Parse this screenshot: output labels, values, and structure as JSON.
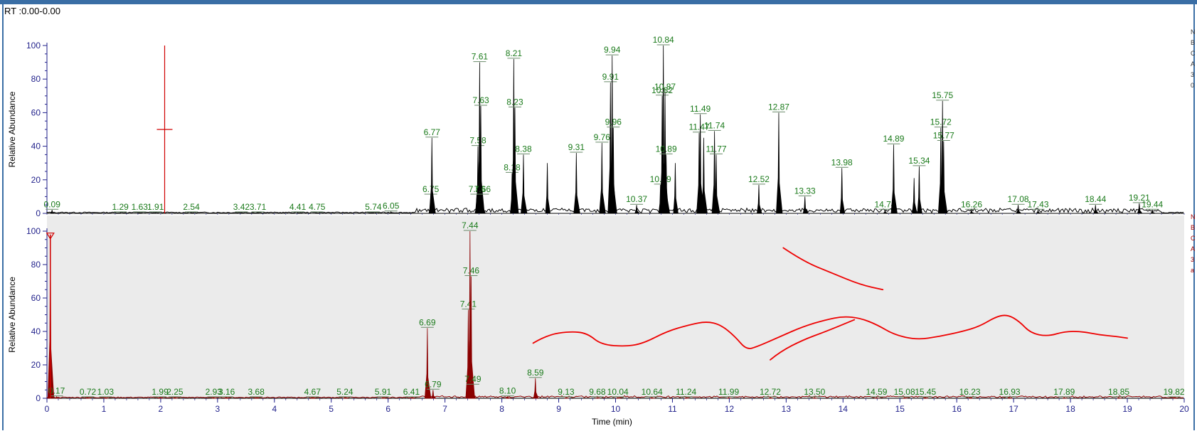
{
  "window": {
    "rt_range": "RT :0.00-0.00",
    "side_text_top": [
      "N",
      "B",
      "C",
      "A",
      "3",
      "0"
    ],
    "side_text_bottom": [
      "N",
      "B",
      "C",
      "A",
      "3",
      "a"
    ]
  },
  "colors": {
    "trace_top": "#000000",
    "trace_bottom": "#8b0000",
    "peak_label": "#1a7a1a",
    "tick_label": "#1f1f8a",
    "annotation": "#ee0000",
    "bottom_panel_bg": "#ebebeb"
  },
  "chart_data": [
    {
      "type": "line",
      "panel": "top",
      "xlabel": "",
      "ylabel": "Relative Abundance",
      "xlim": [
        0,
        20
      ],
      "ylim": [
        0,
        100
      ],
      "yticks": [
        0,
        20,
        40,
        60,
        80,
        100
      ],
      "grid": false,
      "marker": {
        "x": 2.07,
        "y_center": 50,
        "y_top": 100
      },
      "peaks": [
        {
          "rt": 0.09,
          "label": "0.09",
          "height": 2
        },
        {
          "rt": 1.29,
          "label": "1.29",
          "height": 0.5
        },
        {
          "rt": 1.63,
          "label": "1.63",
          "height": 0.5
        },
        {
          "rt": 1.91,
          "label": "1.91",
          "height": 0.5
        },
        {
          "rt": 2.54,
          "label": "2.54",
          "height": 0.5
        },
        {
          "rt": 3.42,
          "label": "3.42",
          "height": 0.5
        },
        {
          "rt": 3.71,
          "label": "3.71",
          "height": 0.5
        },
        {
          "rt": 4.41,
          "label": "4.41",
          "height": 0.5
        },
        {
          "rt": 4.75,
          "label": "4.75",
          "height": 0.5
        },
        {
          "rt": 5.74,
          "label": "5.74",
          "height": 0.5
        },
        {
          "rt": 6.05,
          "label": "6.05",
          "height": 1
        },
        {
          "rt": 6.75,
          "label": "6.75",
          "height": 11
        },
        {
          "rt": 6.77,
          "label": "6.77",
          "height": 45
        },
        {
          "rt": 7.56,
          "label": "7.56",
          "height": 11
        },
        {
          "rt": 7.58,
          "label": "7.58",
          "height": 40
        },
        {
          "rt": 7.61,
          "label": "7.61",
          "height": 90
        },
        {
          "rt": 7.63,
          "label": "7.63",
          "height": 64
        },
        {
          "rt": 7.66,
          "label": "7.66",
          "height": 11
        },
        {
          "rt": 8.18,
          "label": "8.18",
          "height": 24
        },
        {
          "rt": 8.21,
          "label": "8.21",
          "height": 92
        },
        {
          "rt": 8.23,
          "label": "8.23",
          "height": 63
        },
        {
          "rt": 8.38,
          "label": "8.38",
          "height": 35
        },
        {
          "rt": 8.8,
          "label": "",
          "height": 30
        },
        {
          "rt": 9.31,
          "label": "9.31",
          "height": 36
        },
        {
          "rt": 9.76,
          "label": "9.76",
          "height": 42
        },
        {
          "rt": 9.91,
          "label": "9.91",
          "height": 78
        },
        {
          "rt": 9.94,
          "label": "9.94",
          "height": 94
        },
        {
          "rt": 9.96,
          "label": "9.96",
          "height": 51
        },
        {
          "rt": 10.37,
          "label": "10.37",
          "height": 5
        },
        {
          "rt": 10.79,
          "label": "10.79",
          "height": 17
        },
        {
          "rt": 10.82,
          "label": "10.82",
          "height": 70
        },
        {
          "rt": 10.84,
          "label": "10.84",
          "height": 100
        },
        {
          "rt": 10.87,
          "label": "10.87",
          "height": 72
        },
        {
          "rt": 10.89,
          "label": "10.89",
          "height": 35
        },
        {
          "rt": 11.05,
          "label": "",
          "height": 30
        },
        {
          "rt": 11.47,
          "label": "11.47",
          "height": 48
        },
        {
          "rt": 11.49,
          "label": "11.49",
          "height": 59
        },
        {
          "rt": 11.55,
          "label": "",
          "height": 45
        },
        {
          "rt": 11.74,
          "label": "11.74",
          "height": 49
        },
        {
          "rt": 11.77,
          "label": "11.77",
          "height": 35
        },
        {
          "rt": 12.52,
          "label": "12.52",
          "height": 17
        },
        {
          "rt": 12.87,
          "label": "12.87",
          "height": 60
        },
        {
          "rt": 13.33,
          "label": "13.33",
          "height": 10
        },
        {
          "rt": 13.98,
          "label": "13.98",
          "height": 27
        },
        {
          "rt": 14.74,
          "label": "14.74",
          "height": 2
        },
        {
          "rt": 14.89,
          "label": "14.89",
          "height": 41
        },
        {
          "rt": 15.25,
          "label": "",
          "height": 21
        },
        {
          "rt": 15.34,
          "label": "15.34",
          "height": 28
        },
        {
          "rt": 15.72,
          "label": "15.72",
          "height": 51
        },
        {
          "rt": 15.75,
          "label": "15.75",
          "height": 67
        },
        {
          "rt": 15.77,
          "label": "15.77",
          "height": 43
        },
        {
          "rt": 16.26,
          "label": "16.26",
          "height": 2
        },
        {
          "rt": 17.08,
          "label": "17.08",
          "height": 5
        },
        {
          "rt": 17.43,
          "label": "17.43",
          "height": 2
        },
        {
          "rt": 18.44,
          "label": "18.44",
          "height": 5
        },
        {
          "rt": 19.21,
          "label": "19.21",
          "height": 6
        },
        {
          "rt": 19.44,
          "label": "19.44",
          "height": 2
        }
      ]
    },
    {
      "type": "line",
      "panel": "bottom",
      "xlabel": "Time (min)",
      "ylabel": "Relative Abundance",
      "xlim": [
        0,
        20
      ],
      "ylim": [
        0,
        100
      ],
      "xticks": [
        0,
        1,
        2,
        3,
        4,
        5,
        6,
        7,
        8,
        9,
        10,
        11,
        12,
        13,
        14,
        15,
        16,
        17,
        18,
        19,
        20
      ],
      "yticks": [
        0,
        20,
        40,
        60,
        80,
        100
      ],
      "grid": false,
      "marker": {
        "x": 0.06,
        "y_top": 98
      },
      "peaks": [
        {
          "rt": 0.06,
          "label": "",
          "height": 98
        },
        {
          "rt": 0.17,
          "label": "0.17",
          "height": 1
        },
        {
          "rt": 0.72,
          "label": "0.72",
          "height": 0.5
        },
        {
          "rt": 1.03,
          "label": "1.03",
          "height": 0.5
        },
        {
          "rt": 1.99,
          "label": "1.99",
          "height": 0.5
        },
        {
          "rt": 2.25,
          "label": "2.25",
          "height": 0.5
        },
        {
          "rt": 2.93,
          "label": "2.93",
          "height": 0.5
        },
        {
          "rt": 3.16,
          "label": "3.16",
          "height": 0.5
        },
        {
          "rt": 3.68,
          "label": "3.68",
          "height": 0.5
        },
        {
          "rt": 4.67,
          "label": "4.67",
          "height": 0.5
        },
        {
          "rt": 5.24,
          "label": "5.24",
          "height": 0.5
        },
        {
          "rt": 5.91,
          "label": "5.91",
          "height": 0.5
        },
        {
          "rt": 6.41,
          "label": "6.41",
          "height": 0.5
        },
        {
          "rt": 6.69,
          "label": "6.69",
          "height": 42
        },
        {
          "rt": 6.79,
          "label": "6.79",
          "height": 5
        },
        {
          "rt": 7.41,
          "label": "7.41",
          "height": 53
        },
        {
          "rt": 7.44,
          "label": "7.44",
          "height": 100
        },
        {
          "rt": 7.46,
          "label": "7.46",
          "height": 73
        },
        {
          "rt": 7.49,
          "label": "7.49",
          "height": 8
        },
        {
          "rt": 8.1,
          "label": "8.10",
          "height": 1
        },
        {
          "rt": 8.59,
          "label": "8.59",
          "height": 12
        },
        {
          "rt": 9.13,
          "label": "9.13",
          "height": 0.5
        },
        {
          "rt": 9.68,
          "label": "9.68",
          "height": 0.5
        },
        {
          "rt": 10.04,
          "label": "10.04",
          "height": 0.5
        },
        {
          "rt": 10.64,
          "label": "10.64",
          "height": 0.5
        },
        {
          "rt": 11.24,
          "label": "11.24",
          "height": 0.5
        },
        {
          "rt": 11.99,
          "label": "11.99",
          "height": 0.5
        },
        {
          "rt": 12.72,
          "label": "12.72",
          "height": 0.5
        },
        {
          "rt": 13.5,
          "label": "13.50",
          "height": 0.5
        },
        {
          "rt": 14.59,
          "label": "14.59",
          "height": 0.5
        },
        {
          "rt": 15.08,
          "label": "15.08",
          "height": 0.5
        },
        {
          "rt": 15.45,
          "label": "15.45",
          "height": 0.5
        },
        {
          "rt": 16.23,
          "label": "16.23",
          "height": 0.5
        },
        {
          "rt": 16.93,
          "label": "16.93",
          "height": 0.5
        },
        {
          "rt": 17.89,
          "label": "17.89",
          "height": 0.5
        },
        {
          "rt": 18.85,
          "label": "18.85",
          "height": 0.5
        },
        {
          "rt": 19.82,
          "label": "19.82",
          "height": 0.5
        }
      ]
    }
  ],
  "annotations": {
    "description_free": true,
    "cross_strokes": [
      [
        [
          12.72,
          23
        ],
        [
          12.9,
          28
        ],
        [
          13.3,
          35
        ],
        [
          13.7,
          40
        ],
        [
          14.2,
          47
        ]
      ],
      [
        [
          12.95,
          90
        ],
        [
          13.3,
          82
        ],
        [
          13.8,
          75
        ],
        [
          14.3,
          68
        ],
        [
          14.7,
          65
        ]
      ]
    ],
    "wavy_stroke": [
      [
        8.55,
        33
      ],
      [
        8.8,
        38
      ],
      [
        9.2,
        40
      ],
      [
        9.5,
        39
      ],
      [
        9.75,
        32
      ],
      [
        10.2,
        31
      ],
      [
        10.5,
        33
      ],
      [
        10.9,
        40
      ],
      [
        11.3,
        44
      ],
      [
        11.6,
        46
      ],
      [
        11.85,
        44
      ],
      [
        12.1,
        37
      ],
      [
        12.3,
        29
      ],
      [
        12.5,
        31
      ],
      [
        12.9,
        37
      ],
      [
        13.3,
        43
      ],
      [
        13.7,
        47
      ],
      [
        14.0,
        49
      ],
      [
        14.3,
        48
      ],
      [
        14.6,
        44
      ],
      [
        14.9,
        38
      ],
      [
        15.3,
        35
      ],
      [
        15.7,
        37
      ],
      [
        16.1,
        40
      ],
      [
        16.4,
        43
      ],
      [
        16.7,
        49
      ],
      [
        16.9,
        50
      ],
      [
        17.1,
        46
      ],
      [
        17.3,
        39
      ],
      [
        17.6,
        37
      ],
      [
        17.9,
        40
      ],
      [
        18.2,
        40
      ],
      [
        18.5,
        38
      ],
      [
        18.8,
        37
      ],
      [
        19.0,
        36
      ]
    ]
  }
}
